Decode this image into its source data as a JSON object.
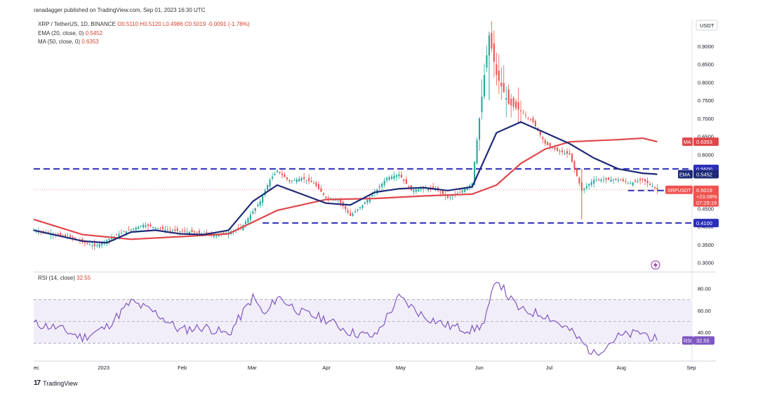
{
  "header": {
    "published": "ranadagger published on TradingView.com, Sep 01, 2023 16:30 UTC"
  },
  "legend": {
    "symbol": "XRP / TetherUS, 1D, BINANCE",
    "ohlc": "O0.5110 H0.5120 L0.4986 C0.5019 -0.0091 (-1.78%)",
    "ema": "EMA (20, close, 0)",
    "ema_value": "0.5452",
    "ma": "MA (50, close, 0)",
    "ma_value": "0.6353",
    "rsi": "RSI (14, close)",
    "rsi_value": "32.55"
  },
  "currency": "USDT",
  "brand": "TradingView",
  "colors": {
    "up": "#26a69a",
    "down": "#ef5350",
    "ema": "#1e2a78",
    "ma": "#e0474c",
    "level": "#2b2fb8",
    "rsi": "#7e57c2"
  },
  "chart_data": [
    {
      "type": "candlestick",
      "title": "XRP / TetherUS, 1D, BINANCE",
      "x_ticks": [
        "ec",
        "2023",
        "Feb",
        "Mar",
        "Apr",
        "May",
        "Jun",
        "Jul",
        "Aug",
        "Sep"
      ],
      "y_ticks": [
        "0.9000",
        "0.8500",
        "0.8000",
        "0.7500",
        "0.7000",
        "0.6500",
        "0.6000",
        "0.5500",
        "0.5000",
        "0.4500",
        "0.4000",
        "0.3500",
        "0.3000"
      ],
      "ylim": [
        0.28,
        0.96
      ],
      "horizontal_levels": [
        {
          "label": "0.5600",
          "value": 0.56
        },
        {
          "label": "0.5000",
          "value": 0.5
        },
        {
          "label": "0.4100",
          "value": 0.41
        }
      ],
      "price_tags": [
        {
          "label": "MA",
          "value": "0.6353"
        },
        {
          "label": "EMA",
          "value": "0.5452"
        },
        {
          "label": "XRPUSDT",
          "value": "0.5019",
          "change": "+23.08%",
          "countdown": "07:29:19"
        }
      ],
      "series": [
        {
          "name": "EMA (20, close, 0)",
          "x": [
            0,
            10,
            20,
            30,
            40,
            50,
            60,
            70,
            80,
            90,
            100,
            110,
            120,
            130,
            140,
            150,
            160,
            170,
            180,
            190,
            200,
            210,
            220,
            230,
            240,
            250,
            256
          ],
          "values": [
            0.39,
            0.375,
            0.36,
            0.355,
            0.385,
            0.39,
            0.38,
            0.378,
            0.39,
            0.47,
            0.515,
            0.49,
            0.465,
            0.46,
            0.495,
            0.505,
            0.508,
            0.5,
            0.51,
            0.66,
            0.69,
            0.66,
            0.63,
            0.59,
            0.56,
            0.548,
            0.5452
          ]
        },
        {
          "name": "MA (50, close, 0)",
          "x": [
            0,
            20,
            40,
            60,
            80,
            100,
            120,
            140,
            160,
            180,
            190,
            200,
            210,
            220,
            230,
            240,
            250,
            256
          ],
          "values": [
            0.42,
            0.378,
            0.365,
            0.372,
            0.38,
            0.445,
            0.475,
            0.478,
            0.485,
            0.49,
            0.515,
            0.575,
            0.615,
            0.635,
            0.638,
            0.641,
            0.645,
            0.6353
          ]
        }
      ],
      "candles_close_path": {
        "x": [
          0,
          15,
          25,
          35,
          45,
          55,
          65,
          75,
          85,
          93,
          97,
          100,
          105,
          110,
          115,
          120,
          125,
          130,
          135,
          140,
          145,
          150,
          155,
          160,
          165,
          170,
          175,
          180,
          185,
          187,
          190,
          195,
          200,
          205,
          210,
          215,
          220,
          225,
          230,
          235,
          240,
          245,
          250,
          256
        ],
        "close": [
          0.39,
          0.37,
          0.345,
          0.38,
          0.405,
          0.39,
          0.385,
          0.375,
          0.395,
          0.47,
          0.53,
          0.555,
          0.525,
          0.535,
          0.52,
          0.48,
          0.475,
          0.43,
          0.46,
          0.495,
          0.535,
          0.545,
          0.5,
          0.505,
          0.505,
          0.48,
          0.495,
          0.52,
          0.82,
          0.93,
          0.82,
          0.74,
          0.72,
          0.69,
          0.63,
          0.61,
          0.6,
          0.5,
          0.53,
          0.53,
          0.53,
          0.52,
          0.53,
          0.5019
        ]
      }
    },
    {
      "type": "line",
      "title": "RSI (14, close)",
      "y_ticks": [
        "80.00",
        "60.00",
        "40.00"
      ],
      "ylim": [
        15,
        92
      ],
      "band": [
        30,
        70
      ],
      "midline": 50,
      "last_value": "32.55",
      "x": [
        0,
        10,
        20,
        30,
        40,
        50,
        60,
        70,
        80,
        90,
        95,
        100,
        110,
        120,
        130,
        140,
        150,
        160,
        170,
        180,
        185,
        190,
        195,
        200,
        210,
        220,
        230,
        240,
        250,
        256
      ],
      "values": [
        48,
        44,
        35,
        45,
        68,
        58,
        42,
        45,
        38,
        72,
        55,
        73,
        58,
        52,
        40,
        36,
        72,
        55,
        46,
        42,
        48,
        90,
        72,
        60,
        56,
        42,
        20,
        36,
        40,
        32.55
      ]
    }
  ]
}
